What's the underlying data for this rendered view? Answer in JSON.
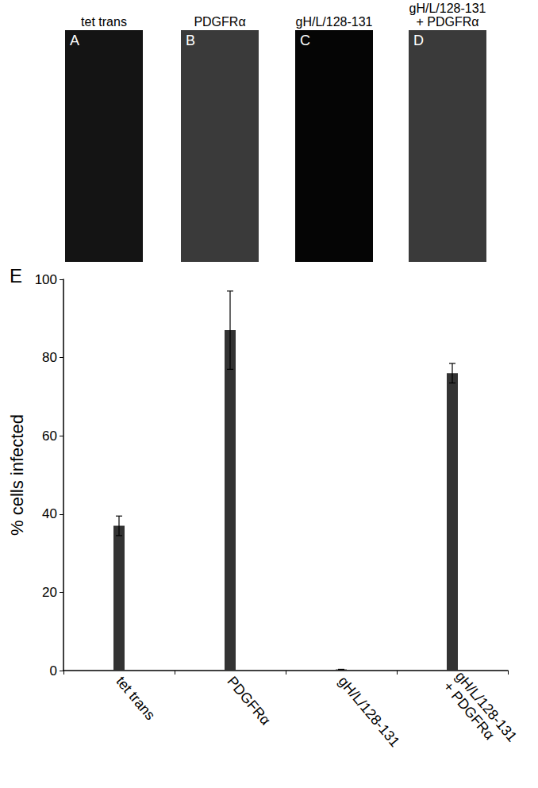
{
  "panels": [
    {
      "letter": "A",
      "title": "tet trans"
    },
    {
      "letter": "B",
      "title": "PDGFRα"
    },
    {
      "letter": "C",
      "title": "gH/L/128-131"
    },
    {
      "letter": "D",
      "title": "gH/L/128-131\n+ PDGFRα"
    }
  ],
  "chart_data": {
    "type": "bar",
    "panel_label": "E",
    "categories": [
      "tet trans",
      "PDGFRα",
      "gH/L/128-131",
      "gH/L/128-131\n+ PDGFRα"
    ],
    "values": [
      37,
      87,
      0.3,
      76
    ],
    "errors": [
      2.5,
      10,
      0,
      2.5
    ],
    "y_label": "% cells infected",
    "color": "#333333",
    "ylim": [
      0,
      100
    ],
    "yticks": [
      0,
      20,
      40,
      60,
      80,
      100
    ],
    "grid": false
  }
}
